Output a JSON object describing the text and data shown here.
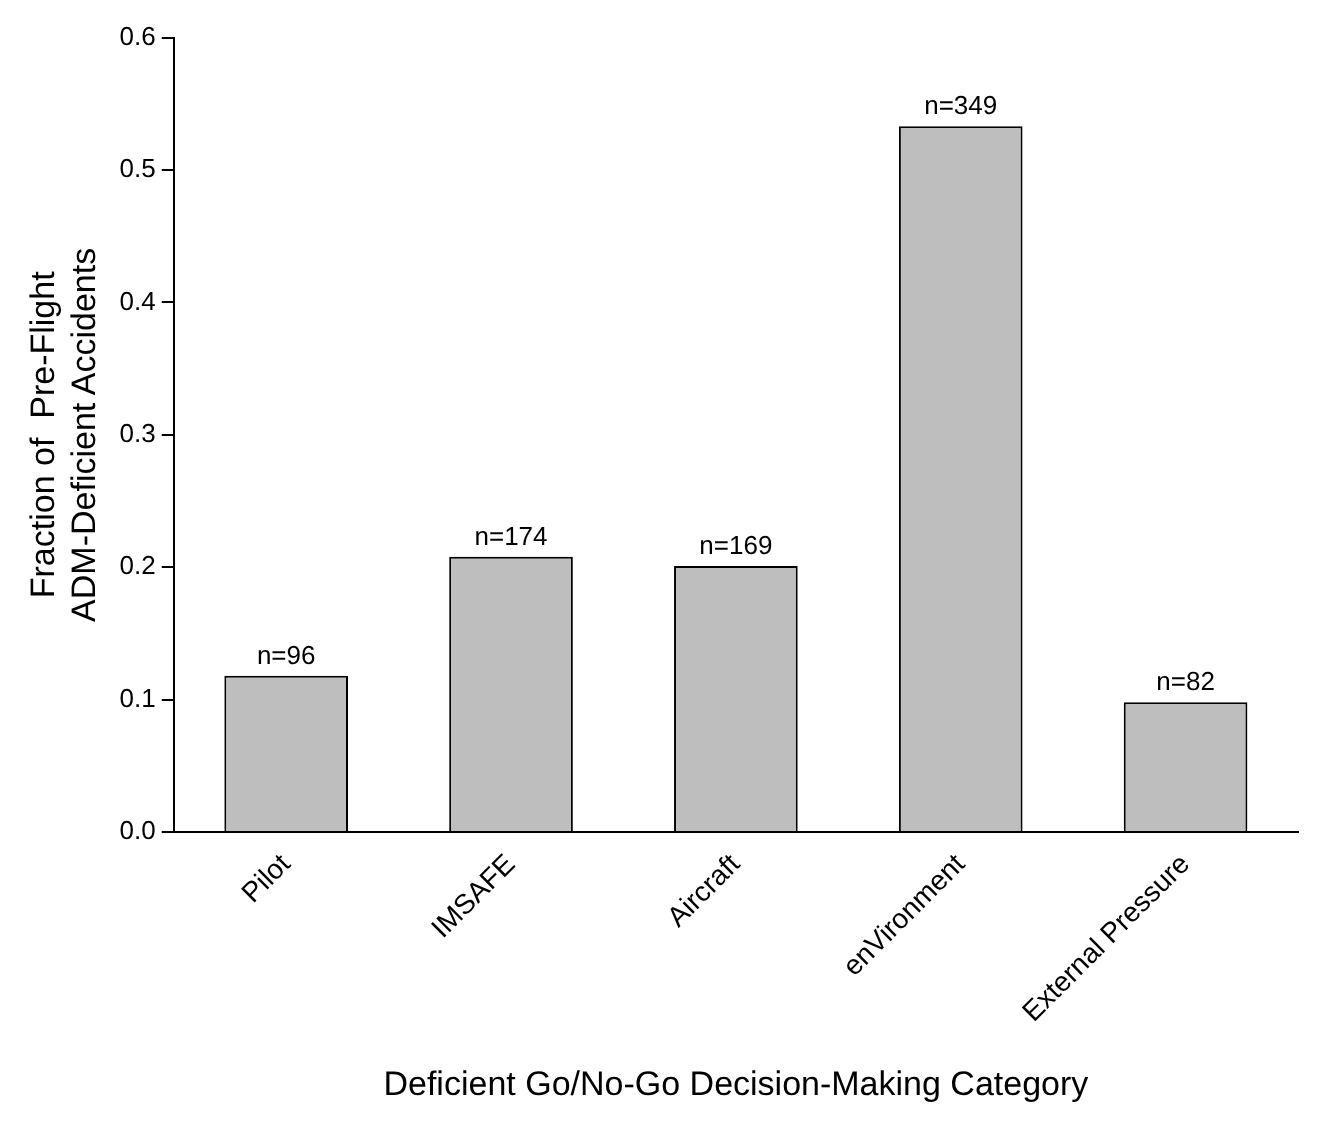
{
  "chart_data": {
    "type": "bar",
    "xlabel": "Deficient Go/No-Go Decision-Making Category",
    "ylabel": "Fraction of  Pre-Flight\nADM-Deficient Accidents",
    "categories": [
      "Pilot",
      "IMSAFE",
      "Aircraft",
      "enVironment",
      "External Pressure"
    ],
    "values": [
      0.118,
      0.208,
      0.201,
      0.533,
      0.098
    ],
    "annotations": [
      {
        "text": "n=96",
        "x": "Pilot",
        "y": 0.118
      },
      {
        "text": "n=174",
        "x": "IMSAFE",
        "y": 0.208
      },
      {
        "text": "n=169",
        "x": "Aircraft",
        "y": 0.201
      },
      {
        "text": "n=349",
        "x": "enVironment",
        "y": 0.533
      },
      {
        "text": "n=82",
        "x": "External Pressure",
        "y": 0.098
      }
    ],
    "color": "#bebebe",
    "ylim": [
      0,
      0.6
    ],
    "yticks": [
      {
        "value": 0,
        "label": "0.0"
      },
      0.1,
      0.2,
      0.3,
      0.4,
      0.5,
      0.6
    ],
    "grid": false
  }
}
